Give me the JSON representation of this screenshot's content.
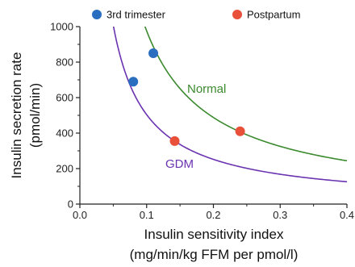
{
  "chart_data": {
    "type": "line",
    "xlabel_line1": "Insulin sensitivity index",
    "xlabel_line2": "(mg/min/kg FFM per pmol/l)",
    "ylabel_line1": "Insulin secretion rate",
    "ylabel_line2": "(pmol/min)",
    "xlim": [
      0.0,
      0.4
    ],
    "ylim": [
      0,
      1000
    ],
    "x_ticks": [
      "0.0",
      "0.1",
      "0.2",
      "0.3",
      "0.4"
    ],
    "y_ticks": [
      "0",
      "200",
      "400",
      "600",
      "800",
      "1000"
    ],
    "grid": false,
    "legend_position": "top",
    "curves": [
      {
        "label": "Normal",
        "color": "#3b8a2e",
        "hyperbola_constant": 97.6
      },
      {
        "label": "GDM",
        "color": "#6a33b0",
        "hyperbola_constant": 50.4
      }
    ],
    "series": [
      {
        "name": "3rd trimester",
        "color": "#2a6fbf",
        "points": [
          [
            0.08,
            690
          ],
          [
            0.11,
            850
          ]
        ]
      },
      {
        "name": "Postpartum",
        "color": "#e8503a",
        "points": [
          [
            0.142,
            355
          ],
          [
            0.24,
            410
          ]
        ]
      }
    ]
  }
}
